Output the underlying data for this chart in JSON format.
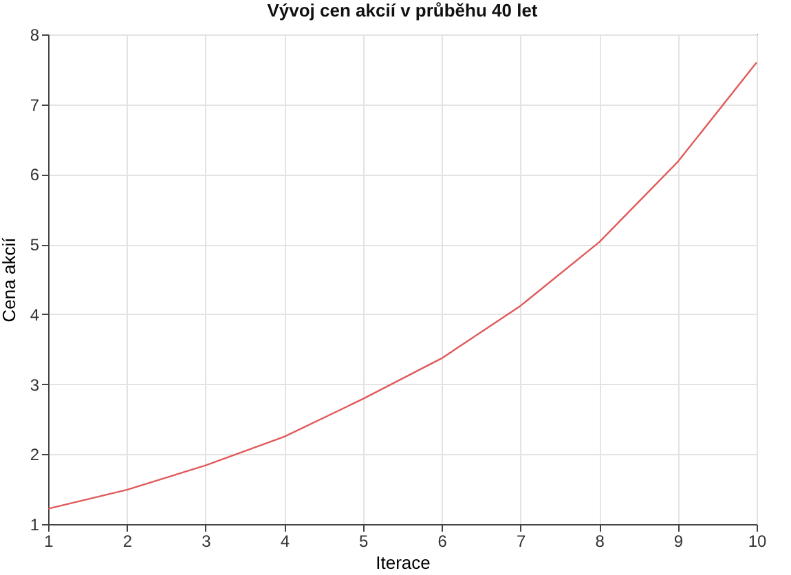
{
  "chart_data": {
    "type": "line",
    "title": "Vývoj cen akcií v průběhu 40 let",
    "xlabel": "Iterace",
    "ylabel": "Cena akcií",
    "x": [
      1,
      2,
      3,
      4,
      5,
      6,
      7,
      8,
      9,
      10
    ],
    "series": [
      {
        "color": "#e05a5a",
        "values": [
          1.22,
          1.49,
          1.84,
          2.25,
          2.79,
          3.37,
          4.12,
          5.03,
          6.18,
          7.6
        ]
      }
    ],
    "xlim": [
      1,
      10
    ],
    "xticks": [
      1,
      2,
      3,
      4,
      5,
      6,
      7,
      8,
      9,
      10
    ],
    "ylim": [
      1,
      8
    ],
    "yticks": [
      1,
      2,
      3,
      4,
      5,
      6,
      7,
      8
    ],
    "grid": true,
    "legend": false,
    "marker": "none",
    "line_style": "solid"
  }
}
